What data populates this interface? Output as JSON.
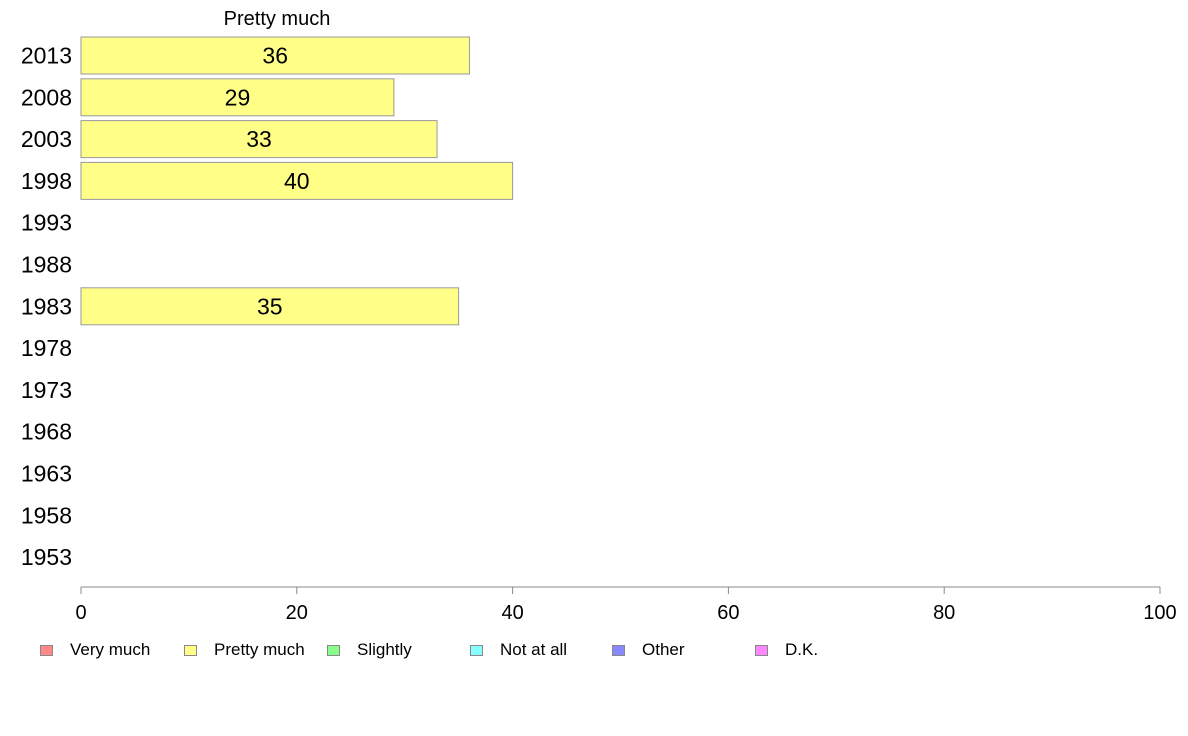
{
  "chart_data": {
    "type": "bar",
    "orientation": "horizontal",
    "title": "Pretty much",
    "categories": [
      "2013",
      "2008",
      "2003",
      "1998",
      "1993",
      "1988",
      "1983",
      "1978",
      "1973",
      "1968",
      "1963",
      "1958",
      "1953"
    ],
    "series": [
      {
        "name": "Pretty much",
        "color": "#ffff88",
        "values": [
          36,
          29,
          33,
          40,
          null,
          null,
          35,
          null,
          null,
          null,
          null,
          null,
          null
        ]
      }
    ],
    "xlim": [
      0,
      100
    ],
    "xticks": [
      0,
      20,
      40,
      60,
      80,
      100
    ],
    "grid": false,
    "legend_position": "bottom",
    "legend": [
      {
        "label": "Very much",
        "color": "#ff8888"
      },
      {
        "label": "Pretty much",
        "color": "#ffff88"
      },
      {
        "label": "Slightly",
        "color": "#88ff88"
      },
      {
        "label": "Not at all",
        "color": "#88ffff"
      },
      {
        "label": "Other",
        "color": "#8888ff"
      },
      {
        "label": "D.K.",
        "color": "#ff88ff"
      }
    ]
  }
}
